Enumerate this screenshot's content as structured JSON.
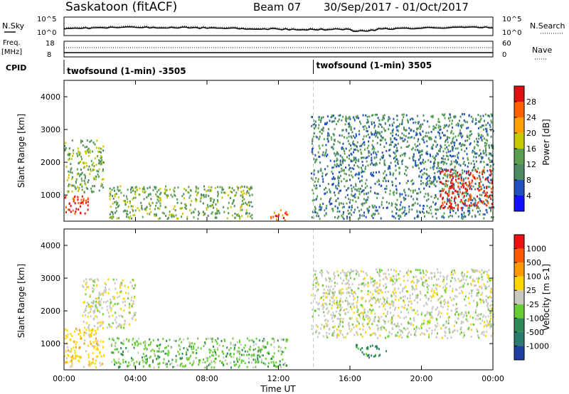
{
  "header": {
    "radar": "Saskatoon (fitACF)",
    "beam": "Beam 07",
    "date_range": "30/Sep/2017 - 01/Oct/2017"
  },
  "noise_panel": {
    "left_label": "N.Sky",
    "right_label": "N.Search",
    "left_ticks": [
      "10^5",
      "10^0"
    ],
    "right_ticks": [
      "10^5",
      "10^0"
    ]
  },
  "freq_panel": {
    "left_label_1": "Freq.",
    "left_label_2": "[MHz]",
    "right_label": "Nave",
    "left_ticks": [
      "18",
      "8"
    ],
    "right_ticks": [
      "60",
      "0"
    ]
  },
  "cpid_panel": {
    "label": "CPID",
    "segments": [
      "twofsound (1-min) -3505",
      "twofsound (1-min) 3505"
    ],
    "switch_time_hours": 13.95
  },
  "colors": {
    "power_scale": [
      "#1010ff",
      "#2050c0",
      "#4c8a60",
      "#5aa050",
      "#c8c800",
      "#ffa000",
      "#ff6000",
      "#e01010"
    ],
    "velocity_scale": [
      "#1f3fa0",
      "#2a7a70",
      "#2e8b57",
      "#66cc33",
      "#c8c8c0",
      "#ffd700",
      "#ff9900",
      "#ff5a00",
      "#ee1111"
    ],
    "ground_scatter": "#c8c8c0"
  },
  "chart_data": [
    {
      "type": "heatmap",
      "name": "power",
      "ylabel": "Slant Range [km]",
      "xlim": [
        0,
        24
      ],
      "ylim": [
        200,
        4500
      ],
      "yticks": [
        1000,
        2000,
        3000,
        4000
      ],
      "xtick_labels": [
        "00:00",
        "04:00",
        "08:00",
        "12:00",
        "16:00",
        "20:00",
        "00:00"
      ],
      "colorbar": {
        "label": "Power [dB]",
        "ticks": [
          "4",
          "8",
          "12",
          "16",
          "20",
          "24",
          "28"
        ]
      },
      "regions": [
        {
          "t": [
            0.0,
            1.5
          ],
          "r": [
            450,
            1000
          ],
          "dominant": "28"
        },
        {
          "t": [
            0.0,
            2.2
          ],
          "r": [
            1100,
            2700
          ],
          "dominant": "12"
        },
        {
          "t": [
            2.5,
            10.5
          ],
          "r": [
            300,
            1300
          ],
          "dominant": "12"
        },
        {
          "t": [
            11.5,
            12.5
          ],
          "r": [
            250,
            600
          ],
          "dominant": "24"
        },
        {
          "t": [
            13.8,
            24.0
          ],
          "r": [
            300,
            3500
          ],
          "dominant": "8"
        },
        {
          "t": [
            21.0,
            24.0
          ],
          "r": [
            600,
            1800
          ],
          "dominant": "28"
        }
      ]
    },
    {
      "type": "heatmap",
      "name": "velocity",
      "ylabel": "Slant Range [km]",
      "xlabel": "Time UT",
      "xlim": [
        0,
        24
      ],
      "ylim": [
        200,
        4500
      ],
      "yticks": [
        1000,
        2000,
        3000,
        4000
      ],
      "xtick_labels": [
        "00:00",
        "04:00",
        "08:00",
        "12:00",
        "16:00",
        "20:00",
        "00:00"
      ],
      "colorbar": {
        "label": "Velocity [m s-1]",
        "ticks": [
          "1000",
          "500",
          "100",
          "25",
          "-25",
          "-100",
          "-500",
          "-1000"
        ]
      },
      "regions": [
        {
          "t": [
            0.0,
            2.2
          ],
          "r": [
            300,
            1500
          ],
          "dominant": "100"
        },
        {
          "t": [
            1.0,
            4.0
          ],
          "r": [
            1500,
            3000
          ],
          "dominant": "25"
        },
        {
          "t": [
            2.5,
            12.5
          ],
          "r": [
            300,
            1200
          ],
          "dominant": "-25"
        },
        {
          "t": [
            13.8,
            24.0
          ],
          "r": [
            1200,
            3300
          ],
          "dominant": "25"
        },
        {
          "t": [
            16.3,
            18.0
          ],
          "r": [
            600,
            1000
          ],
          "dominant": "-100"
        }
      ]
    }
  ]
}
